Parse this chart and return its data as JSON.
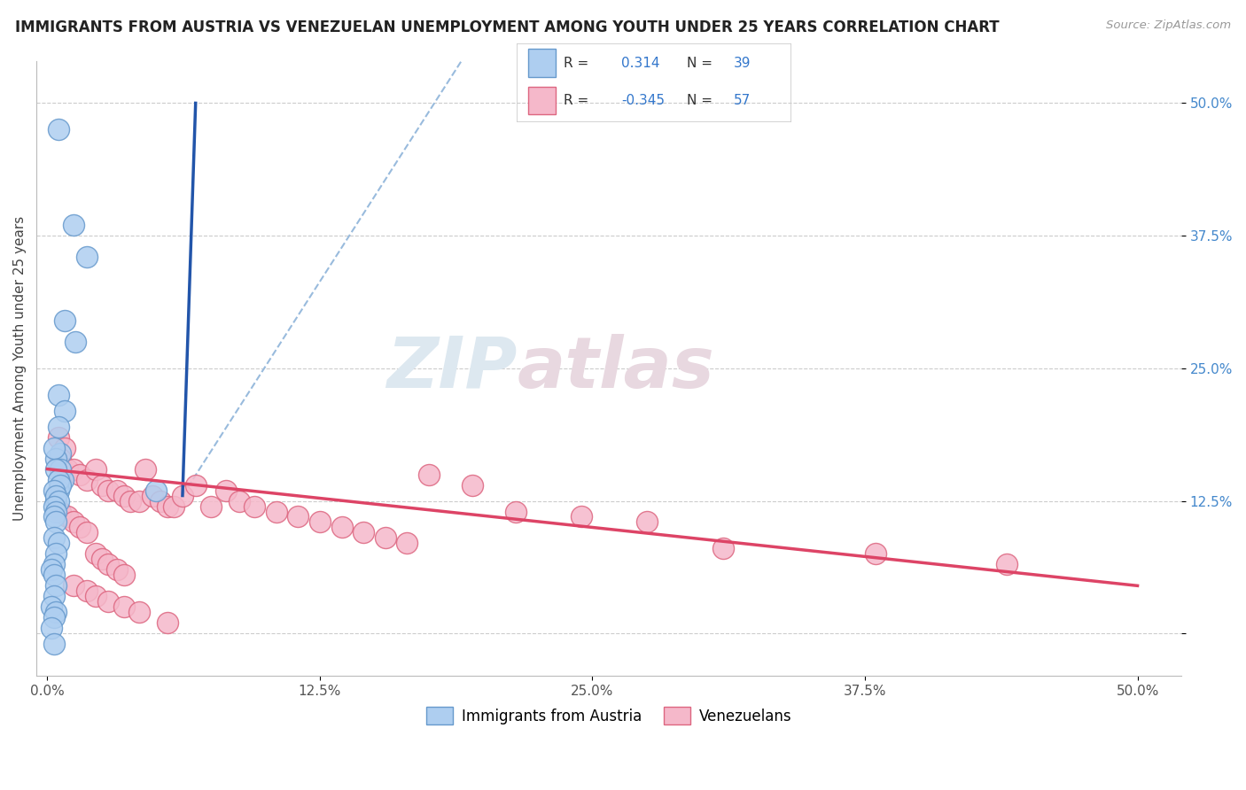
{
  "title": "IMMIGRANTS FROM AUSTRIA VS VENEZUELAN UNEMPLOYMENT AMONG YOUTH UNDER 25 YEARS CORRELATION CHART",
  "source": "Source: ZipAtlas.com",
  "ylabel": "Unemployment Among Youth under 25 years",
  "ytick_vals": [
    0.0,
    0.125,
    0.25,
    0.375,
    0.5
  ],
  "ytick_labels": [
    "",
    "12.5%",
    "25.0%",
    "37.5%",
    "50.0%"
  ],
  "xtick_vals": [
    0.0,
    0.125,
    0.25,
    0.375,
    0.5
  ],
  "xtick_labels": [
    "0.0%",
    "12.5%",
    "25.0%",
    "37.5%",
    "50.0%"
  ],
  "xlim": [
    -0.005,
    0.52
  ],
  "ylim": [
    -0.04,
    0.54
  ],
  "blue_color": "#aecef0",
  "blue_edge": "#6699cc",
  "pink_color": "#f5b8ca",
  "pink_edge": "#dd6680",
  "blue_line_color": "#2255aa",
  "pink_line_color": "#dd4466",
  "dashed_color": "#99bbdd",
  "watermark_zip": "ZIP",
  "watermark_atlas": "atlas",
  "label1": "Immigrants from Austria",
  "label2": "Venezuelans",
  "blue_scatter_x": [
    0.005,
    0.012,
    0.018,
    0.008,
    0.013,
    0.005,
    0.008,
    0.005,
    0.006,
    0.004,
    0.006,
    0.007,
    0.005,
    0.004,
    0.003,
    0.004,
    0.005,
    0.006,
    0.003,
    0.004,
    0.005,
    0.003,
    0.004,
    0.003,
    0.004,
    0.003,
    0.005,
    0.004,
    0.003,
    0.002,
    0.003,
    0.004,
    0.003,
    0.002,
    0.05,
    0.004,
    0.003,
    0.002,
    0.003
  ],
  "blue_scatter_y": [
    0.475,
    0.385,
    0.355,
    0.295,
    0.275,
    0.225,
    0.21,
    0.195,
    0.17,
    0.165,
    0.155,
    0.145,
    0.135,
    0.125,
    0.175,
    0.155,
    0.145,
    0.14,
    0.135,
    0.13,
    0.125,
    0.12,
    0.115,
    0.11,
    0.105,
    0.09,
    0.085,
    0.075,
    0.065,
    0.06,
    0.055,
    0.045,
    0.035,
    0.025,
    0.135,
    0.02,
    0.015,
    0.005,
    -0.01
  ],
  "pink_scatter_x": [
    0.005,
    0.008,
    0.006,
    0.009,
    0.012,
    0.015,
    0.018,
    0.022,
    0.025,
    0.028,
    0.032,
    0.035,
    0.038,
    0.042,
    0.045,
    0.048,
    0.052,
    0.055,
    0.058,
    0.062,
    0.068,
    0.075,
    0.082,
    0.088,
    0.095,
    0.105,
    0.115,
    0.125,
    0.135,
    0.145,
    0.155,
    0.165,
    0.175,
    0.195,
    0.215,
    0.245,
    0.275,
    0.31,
    0.38,
    0.44,
    0.006,
    0.009,
    0.012,
    0.015,
    0.018,
    0.022,
    0.025,
    0.028,
    0.032,
    0.035,
    0.012,
    0.018,
    0.022,
    0.028,
    0.035,
    0.042,
    0.055
  ],
  "pink_scatter_y": [
    0.185,
    0.175,
    0.165,
    0.155,
    0.155,
    0.15,
    0.145,
    0.155,
    0.14,
    0.135,
    0.135,
    0.13,
    0.125,
    0.125,
    0.155,
    0.13,
    0.125,
    0.12,
    0.12,
    0.13,
    0.14,
    0.12,
    0.135,
    0.125,
    0.12,
    0.115,
    0.11,
    0.105,
    0.1,
    0.095,
    0.09,
    0.085,
    0.15,
    0.14,
    0.115,
    0.11,
    0.105,
    0.08,
    0.075,
    0.065,
    0.115,
    0.11,
    0.105,
    0.1,
    0.095,
    0.075,
    0.07,
    0.065,
    0.06,
    0.055,
    0.045,
    0.04,
    0.035,
    0.03,
    0.025,
    0.02,
    0.01
  ],
  "blue_line_x0": 0.062,
  "blue_line_y0": 0.13,
  "blue_line_x1": 0.068,
  "blue_line_y1": 0.5,
  "pink_line_x0": 0.0,
  "pink_line_y0": 0.155,
  "pink_line_x1": 0.5,
  "pink_line_y1": 0.045,
  "dash_line_x0": 0.062,
  "dash_line_y0": 0.13,
  "dash_line_x1": 0.19,
  "dash_line_y1": 0.54
}
